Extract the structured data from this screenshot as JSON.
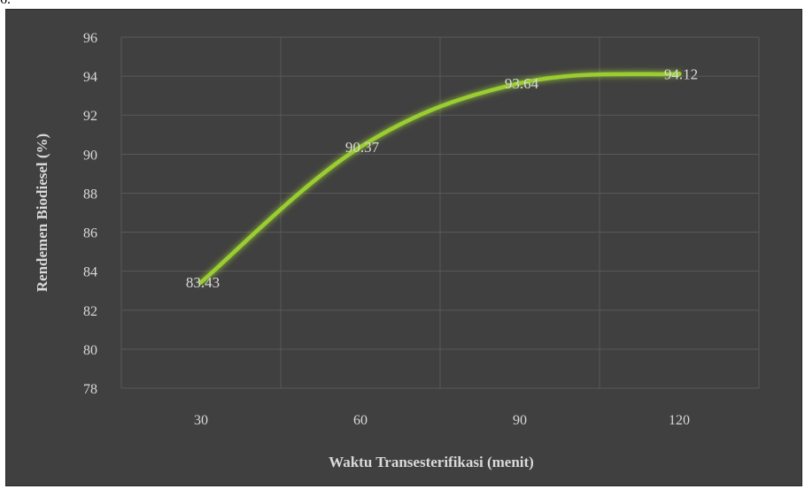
{
  "page": {
    "top_fragment": "6."
  },
  "chart_data": {
    "type": "line",
    "x": [
      30,
      60,
      90,
      120
    ],
    "categories": [
      "30",
      "60",
      "90",
      "120"
    ],
    "series": [
      {
        "values": [
          83.43,
          90.37,
          93.64,
          94.12
        ],
        "color": "#9acd32"
      }
    ],
    "data_labels": [
      "83.43",
      "90.37",
      "93.64",
      "94.12"
    ],
    "title": "",
    "xlabel": "Waktu Transesterifikasi (menit)",
    "ylabel": "Rendemen Biodiesel (%)",
    "ylim": [
      78,
      96
    ],
    "yticks": [
      78,
      80,
      82,
      84,
      86,
      88,
      90,
      92,
      94,
      96
    ],
    "grid": true,
    "background": "#404040",
    "gridline_color": "#595959",
    "text_color": "#d9d9d9"
  }
}
